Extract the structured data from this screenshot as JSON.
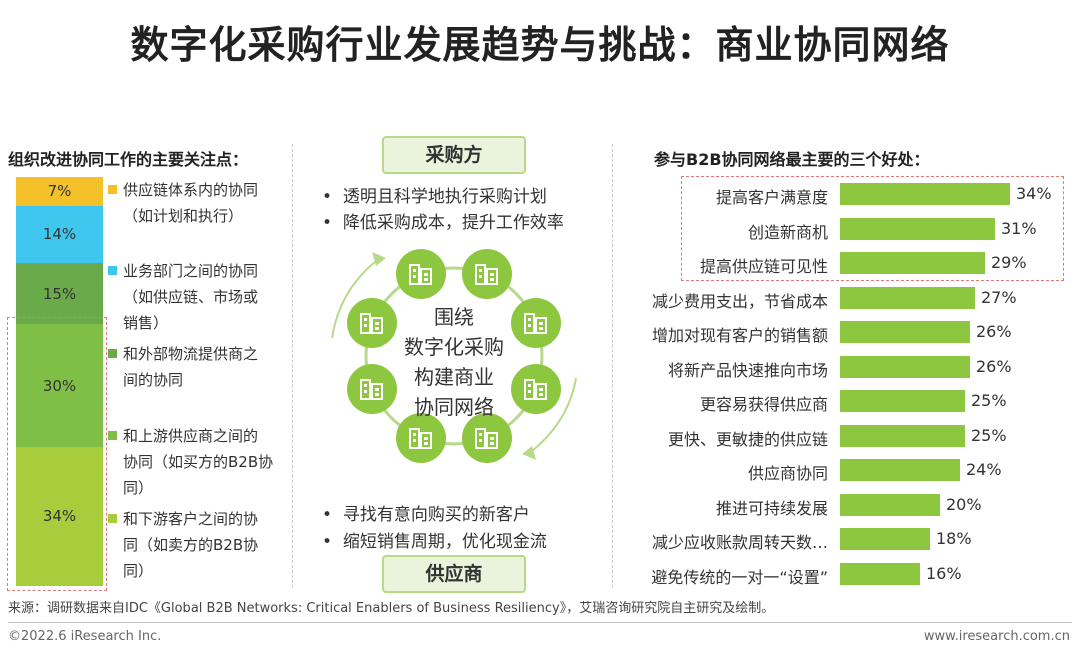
{
  "title": "数字化采购行业发展趋势与挑战：商业协同网络",
  "left": {
    "heading": "组织改进协同工作的主要关注点：",
    "colors": [
      "#f5c12b",
      "#3fc6ee",
      "#6aaa4b",
      "#7fbf45",
      "#a8cd3c"
    ],
    "items": [
      {
        "label": "供应链体系内的协同",
        "sub": [
          "（如计划和执行）"
        ]
      },
      {
        "label": "业务部门之间的协同",
        "sub": [
          "（如供应链、市场或",
          "销售）"
        ]
      },
      {
        "label": "和外部物流提供商之",
        "sub": [
          "间的协同"
        ]
      },
      {
        "label": "和上游供应商之间的",
        "sub": [
          "协同（如买方的B2B协",
          "同）"
        ]
      },
      {
        "label": "和下游客户之间的协",
        "sub": [
          "同（如卖方的B2B协",
          "同）"
        ]
      }
    ]
  },
  "center": {
    "buyer": "采购方",
    "supplier": "供应商",
    "buyer_bullets": [
      "透明且科学地执行采购计划",
      "降低采购成本，提升工作效率"
    ],
    "supplier_bullets": [
      "寻找有意向购买的新客户",
      "缩短销售周期，优化现金流"
    ],
    "circle_text": [
      "围绕",
      "数字化采购",
      "构建商业",
      "协同网络"
    ],
    "node_icon": "building-icon",
    "accent": "#8dc63f"
  },
  "right": {
    "heading": "参与B2B协同网络最主要的三个好处："
  },
  "chart_data": [
    {
      "type": "bar",
      "stacked": true,
      "categories": [
        "供应链体系内的协同（如计划和执行）",
        "业务部门之间的协同（如供应链、市场或销售）",
        "和外部物流提供商之间的协同",
        "和上游供应商之间的协同（如买方的B2B协同）",
        "和下游客户之间的协同（如卖方的B2B协同）"
      ],
      "values": [
        7,
        14,
        15,
        30,
        34
      ],
      "labels": [
        "7%",
        "14%",
        "15%",
        "30%",
        "34%"
      ],
      "title": "组织改进协同工作的主要关注点："
    },
    {
      "type": "bar",
      "orientation": "horizontal",
      "categories": [
        "提高客户满意度",
        "创造新商机",
        "提高供应链可见性",
        "减少费用支出，节省成本",
        "增加对现有客户的销售额",
        "将新产品快速推向市场",
        "更容易获得供应商",
        "更快、更敏捷的供应链",
        "供应商协同",
        "推进可持续发展",
        "减少应收账款周转天数…",
        "避免传统的一对一“设置”"
      ],
      "values": [
        34,
        31,
        29,
        27,
        26,
        26,
        25,
        25,
        24,
        20,
        18,
        16
      ],
      "labels": [
        "34%",
        "31%",
        "29%",
        "27%",
        "26%",
        "26%",
        "25%",
        "25%",
        "24%",
        "20%",
        "18%",
        "16%"
      ],
      "title": "参与B2B协同网络最主要的三个好处：",
      "xlim": [
        0,
        34
      ],
      "highlight_top": 3,
      "color": "#8dc63f"
    }
  ],
  "source": "来源：调研数据来自IDC《Global B2B Networks: Critical Enablers of Business Resiliency》，艾瑞咨询研究院自主研究及绘制。",
  "copyright": "©2022.6 iResearch Inc.",
  "website": "www.iresearch.com.cn"
}
